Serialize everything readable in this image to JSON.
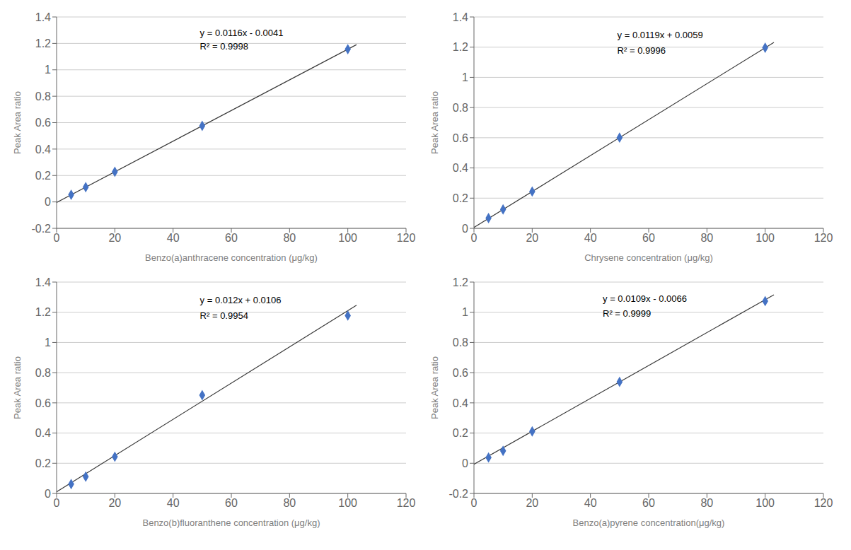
{
  "chart_data": [
    {
      "type": "scatter",
      "x_label": "Benzo(a)anthracene concentration (μg/kg)",
      "y_label": "Peak Area ratio",
      "x": [
        5,
        10,
        20,
        50,
        100
      ],
      "values": [
        0.054,
        0.112,
        0.228,
        0.576,
        1.156
      ],
      "color": "#4472C4",
      "marker": "diamond",
      "line": {
        "x": [
          0,
          103
        ],
        "y": [
          -0.0041,
          1.1907
        ],
        "color": "#3a3a3a"
      },
      "annotations": [
        {
          "text": "y = 0.0116x - 0.0041",
          "x": 48,
          "y": 1.28
        },
        {
          "text": "R² = 0.9998",
          "x": 48,
          "y": 1.18
        }
      ],
      "xlim": [
        0,
        120
      ],
      "ylim": [
        -0.2,
        1.4
      ],
      "xticks": [
        0,
        20,
        40,
        60,
        80,
        100,
        120
      ],
      "yticks": [
        -0.2,
        0,
        0.2,
        0.4,
        0.6,
        0.8,
        1,
        1.2,
        1.4
      ],
      "grid": true
    },
    {
      "type": "scatter",
      "x_label": "Chrysene concentration (μg/kg)",
      "y_label": "Peak Area ratio",
      "x": [
        5,
        10,
        20,
        50,
        100
      ],
      "values": [
        0.068,
        0.125,
        0.244,
        0.601,
        1.196
      ],
      "color": "#4472C4",
      "marker": "diamond",
      "line": {
        "x": [
          0,
          103
        ],
        "y": [
          0.0059,
          1.2316
        ],
        "color": "#3a3a3a"
      },
      "annotations": [
        {
          "text": "y = 0.0119x + 0.0059",
          "x": 48,
          "y": 1.28
        },
        {
          "text": "R² = 0.9996",
          "x": 48,
          "y": 1.18
        }
      ],
      "xlim": [
        0,
        120
      ],
      "ylim": [
        0,
        1.4
      ],
      "xticks": [
        0,
        20,
        40,
        60,
        80,
        100,
        120
      ],
      "yticks": [
        0,
        0.2,
        0.4,
        0.6,
        0.8,
        1,
        1.2,
        1.4
      ],
      "grid": true
    },
    {
      "type": "scatter",
      "x_label": "Benzo(b)fluoranthene concentration (μg/kg)",
      "y_label": "Peak Area ratio",
      "x": [
        5,
        10,
        20,
        50,
        100
      ],
      "values": [
        0.062,
        0.111,
        0.243,
        0.651,
        1.178
      ],
      "color": "#4472C4",
      "marker": "diamond",
      "line": {
        "x": [
          0,
          103
        ],
        "y": [
          0.0106,
          1.2466
        ],
        "color": "#3a3a3a"
      },
      "annotations": [
        {
          "text": "y = 0.012x + 0.0106",
          "x": 48,
          "y": 1.28
        },
        {
          "text": "R² = 0.9954",
          "x": 48,
          "y": 1.18
        }
      ],
      "xlim": [
        0,
        120
      ],
      "ylim": [
        0,
        1.4
      ],
      "xticks": [
        0,
        20,
        40,
        60,
        80,
        100,
        120
      ],
      "yticks": [
        0,
        0.2,
        0.4,
        0.6,
        0.8,
        1,
        1.2,
        1.4
      ],
      "grid": true
    },
    {
      "type": "scatter",
      "x_label": "Benzo(a)pyrene concentration(μg/kg)",
      "y_label": "Peak Area ratio",
      "x": [
        5,
        10,
        20,
        50,
        100
      ],
      "values": [
        0.038,
        0.082,
        0.211,
        0.539,
        1.074
      ],
      "color": "#4472C4",
      "marker": "diamond",
      "line": {
        "x": [
          0,
          103
        ],
        "y": [
          -0.0066,
          1.1161
        ],
        "color": "#3a3a3a"
      },
      "annotations": [
        {
          "text": "y = 0.0109x - 0.0066",
          "x": 43,
          "y": 1.09
        },
        {
          "text": "R² = 0.9999",
          "x": 43,
          "y": 0.99
        }
      ],
      "xlim": [
        0,
        120
      ],
      "ylim": [
        -0.2,
        1.2
      ],
      "xticks": [
        0,
        20,
        40,
        60,
        80,
        100,
        120
      ],
      "yticks": [
        -0.2,
        0,
        0.2,
        0.4,
        0.6,
        0.8,
        1,
        1.2
      ],
      "grid": true
    }
  ]
}
